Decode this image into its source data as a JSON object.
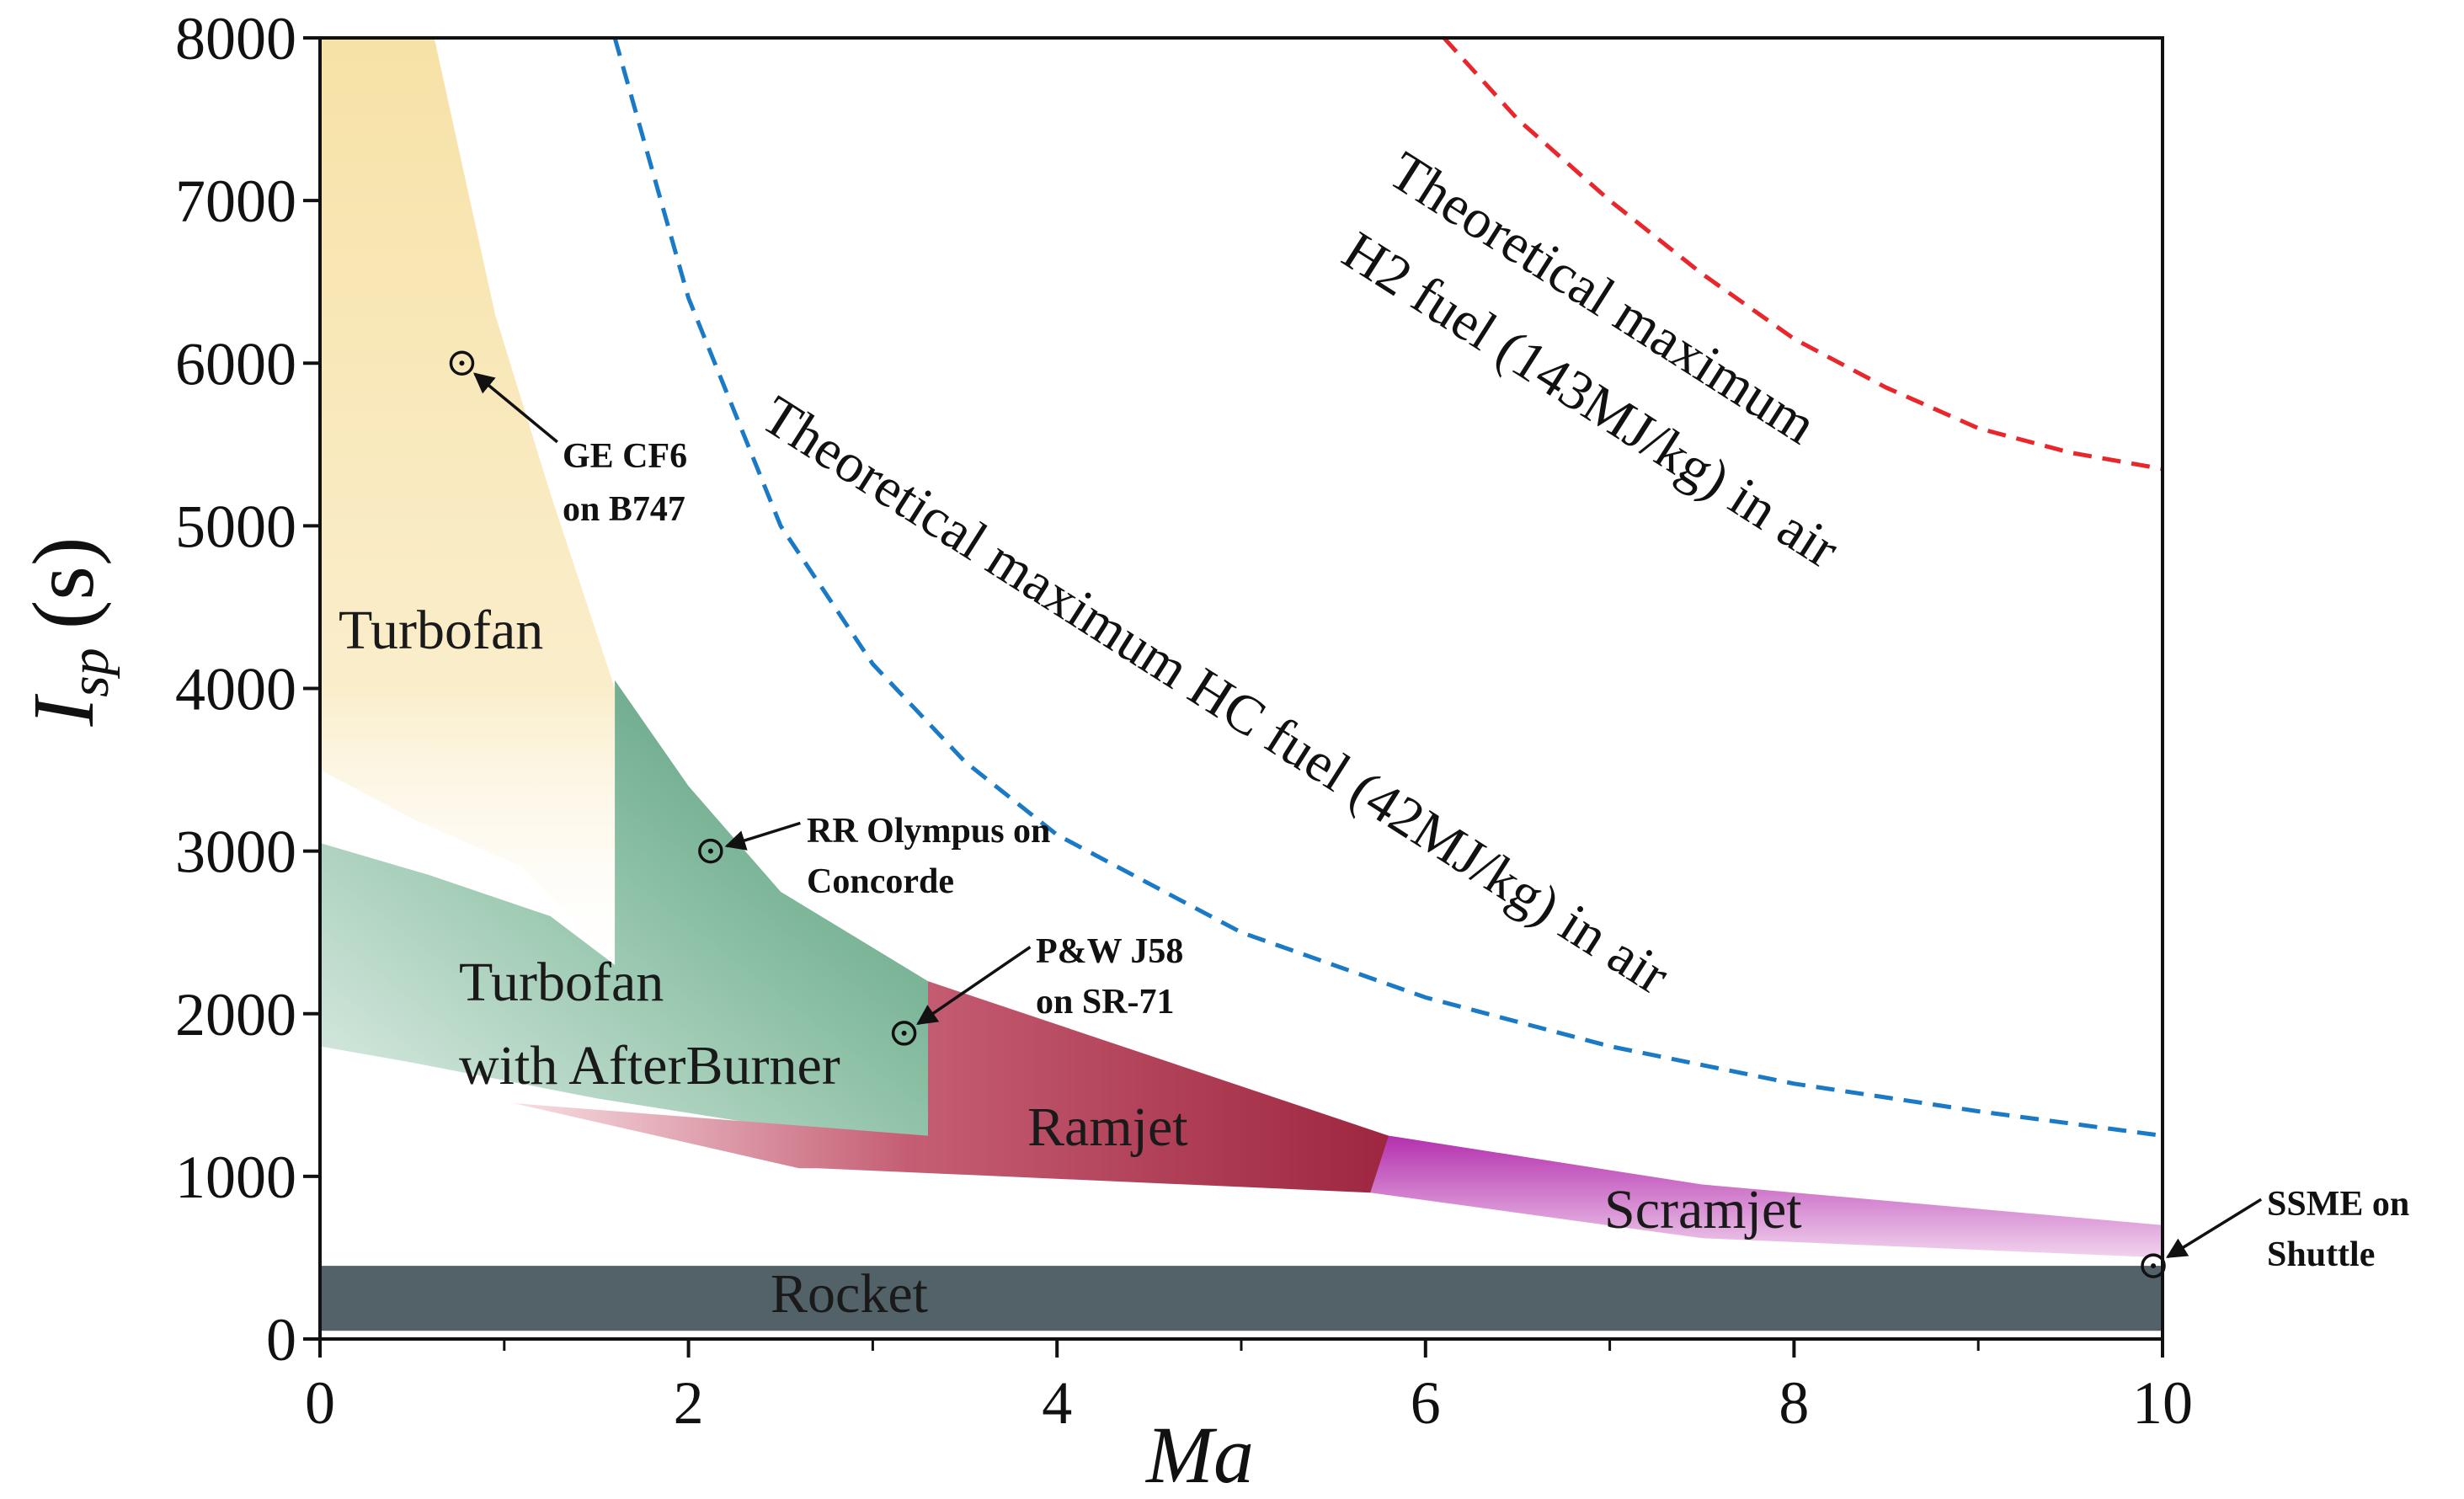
{
  "chart_data": {
    "type": "area",
    "xlabel": "Ma",
    "ylabel": {
      "main": "I",
      "sub": "sp",
      "unit": "(s)"
    },
    "xlim": [
      0,
      10
    ],
    "ylim": [
      0,
      8000
    ],
    "x_ticks": [
      "0",
      "2",
      "4",
      "6",
      "8",
      "10"
    ],
    "y_ticks": [
      "0",
      "1000",
      "2000",
      "3000",
      "4000",
      "5000",
      "6000",
      "7000",
      "8000"
    ],
    "x_minor_ticks": [
      1,
      3,
      5,
      7,
      9
    ],
    "grid": false,
    "regions": [
      {
        "name": "Turbofan",
        "color": "#f5dc96",
        "polygon": [
          [
            0,
            8000
          ],
          [
            0.62,
            8000
          ],
          [
            0.95,
            6300
          ],
          [
            1.25,
            5200
          ],
          [
            1.6,
            4000
          ],
          [
            1.6,
            2300
          ],
          [
            1.1,
            2900
          ],
          [
            0.5,
            3200
          ],
          [
            0,
            3500
          ]
        ]
      },
      {
        "name": "Turbofan with AfterBurner",
        "color": "#5c9e7e",
        "polygon": [
          [
            0,
            3050
          ],
          [
            0.6,
            2850
          ],
          [
            1.25,
            2600
          ],
          [
            1.6,
            2300
          ],
          [
            1.6,
            4050
          ],
          [
            2.0,
            3400
          ],
          [
            2.5,
            2750
          ],
          [
            3.3,
            2200
          ],
          [
            3.3,
            1150
          ],
          [
            2.5,
            1300
          ],
          [
            1.5,
            1480
          ],
          [
            0.5,
            1700
          ],
          [
            0,
            1800
          ]
        ]
      },
      {
        "name": "Ramjet",
        "color": "#a12c48",
        "polygon": [
          [
            3.3,
            2200
          ],
          [
            5.8,
            1250
          ],
          [
            5.8,
            950
          ],
          [
            5.7,
            900
          ],
          [
            2.7,
            1050
          ],
          [
            2.6,
            1050
          ],
          [
            1.05,
            1450
          ],
          [
            3.3,
            1250
          ]
        ]
      },
      {
        "name": "Scramjet",
        "color": "#b42fae",
        "polygon": [
          [
            5.8,
            1250
          ],
          [
            7.5,
            950
          ],
          [
            10,
            700
          ],
          [
            10,
            500
          ],
          [
            7.5,
            620
          ],
          [
            5.7,
            900
          ]
        ]
      },
      {
        "name": "Rocket",
        "color": "#536269",
        "polygon": [
          [
            0,
            450
          ],
          [
            10,
            450
          ],
          [
            10,
            50
          ],
          [
            0,
            50
          ]
        ]
      }
    ],
    "series": [
      {
        "name": "Theoretical maximum HC fuel (42MJ/kg) in air",
        "label_line1": "Theoretical maximum HC fuel (42MJ/kg) in air",
        "color": "#1a7ac6",
        "x": [
          1.6,
          2.0,
          2.5,
          3.0,
          3.5,
          4.0,
          5.0,
          6.0,
          7.0,
          8.0,
          9.0,
          10.0
        ],
        "y": [
          8000,
          6400,
          5000,
          4150,
          3550,
          3100,
          2500,
          2100,
          1800,
          1570,
          1400,
          1250
        ]
      },
      {
        "name": "Theoretical maximum H2 fuel (143MJ/kg) in air",
        "label_line1": "Theoretical maximum",
        "label_line2": "H2 fuel (143MJ/kg) in air",
        "color": "#e8262b",
        "x": [
          6.1,
          6.5,
          7.0,
          7.5,
          8.0,
          8.5,
          9.0,
          9.5,
          10.0
        ],
        "y": [
          8000,
          7500,
          7000,
          6550,
          6150,
          5850,
          5600,
          5450,
          5350
        ]
      }
    ],
    "engines": [
      {
        "line1": "GE CF6",
        "line2": "on B747",
        "x": 0.77,
        "y": 6000
      },
      {
        "line1": "RR Olympus on",
        "line2": "Concorde",
        "x": 2.12,
        "y": 3000
      },
      {
        "line1": "P&W J58",
        "line2": "on SR-71",
        "x": 3.17,
        "y": 1880
      },
      {
        "line1": "SSME on",
        "line2": "Shuttle",
        "x": 9.95,
        "y": 450
      }
    ],
    "region_labels": {
      "turbofan": "Turbofan",
      "afterburner_line1": "Turbofan",
      "afterburner_line2": "with AfterBurner",
      "ramjet": "Ramjet",
      "scramjet": "Scramjet",
      "rocket": "Rocket"
    }
  }
}
